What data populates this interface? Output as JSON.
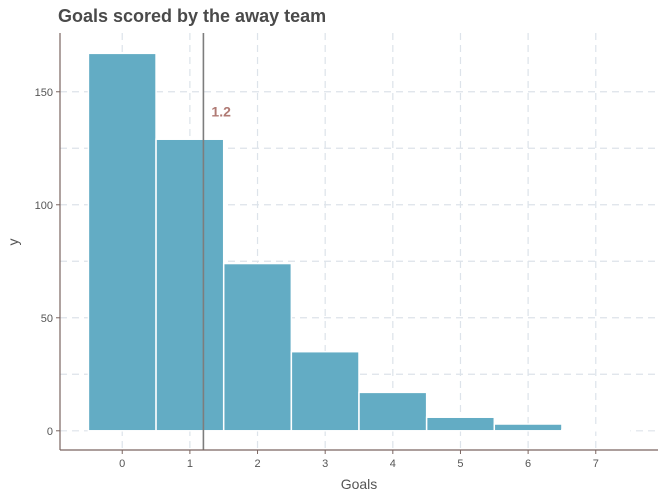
{
  "chart_data": {
    "type": "bar",
    "title": "Goals scored by the away team",
    "xlabel": "Goals",
    "ylabel": "y",
    "categories": [
      "0",
      "1",
      "2",
      "3",
      "4",
      "5",
      "6",
      "7"
    ],
    "x": [
      0,
      1,
      2,
      3,
      4,
      5,
      6,
      7
    ],
    "values": [
      167,
      129,
      74,
      35,
      17,
      6,
      3,
      0.5
    ],
    "xlim": [
      -0.92,
      7.92
    ],
    "ylim": [
      -8.5,
      176
    ],
    "yticks": [
      0,
      50,
      100,
      150
    ],
    "yticklabels": [
      "0",
      "50",
      "100",
      "150"
    ],
    "grid": true,
    "bar_color": "#63acc4",
    "mean_line": {
      "value": 1.2,
      "label": "1.2",
      "color": "#7d7d7d",
      "label_color": "#b07a74"
    }
  }
}
